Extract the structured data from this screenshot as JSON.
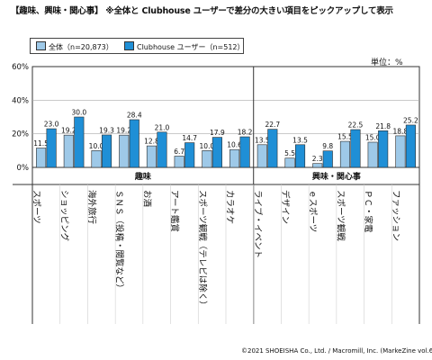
{
  "title": "【趣味、興味・関心事】 ※全体と Clubhouse ユーザーで差分の大きい項目をピックアップして表示",
  "unit": "単位：%",
  "credit": "©2021 SHOEISHA Co., Ltd. / Macromill, Inc. (MarkeZine vol.68)",
  "colors": {
    "series_all": "#9ec9e8",
    "series_clubhouse": "#1f8fd6",
    "axis": "#333333",
    "grid": "#aaaaaa"
  },
  "chart_data": {
    "type": "bar",
    "ylim": [
      0,
      60
    ],
    "yticks": [
      "0%",
      "20%",
      "40%",
      "60%"
    ],
    "legend_position": "top-left",
    "grid": true,
    "groups": [
      {
        "label": "趣味",
        "count": 8
      },
      {
        "label": "興味・関心事",
        "count": 6
      }
    ],
    "categories": [
      "スポーツ",
      "ショッピング",
      "海外旅行",
      "ＳＮＳ（投稿・閲覧など）",
      "お酒",
      "アート鑑賞",
      "スポーツ観戦（テレビは除く）",
      "カラオケ",
      "ライブ・イベント",
      "デザイン",
      "ｅスポーツ",
      "スポーツ観戦",
      "ＰＣ・家電",
      "ファッション"
    ],
    "series": [
      {
        "name": "全体（n=20,873）",
        "values": [
          11.5,
          19.2,
          10.0,
          19.2,
          12.8,
          6.7,
          10.0,
          10.6,
          13.5,
          5.5,
          2.3,
          15.5,
          15.0,
          18.8
        ]
      },
      {
        "name": "Clubhouse ユーザー（n=512）",
        "values": [
          23.0,
          30.0,
          19.3,
          28.4,
          21.0,
          14.7,
          17.9,
          18.2,
          22.7,
          13.5,
          9.8,
          22.5,
          21.8,
          25.2
        ]
      }
    ]
  }
}
